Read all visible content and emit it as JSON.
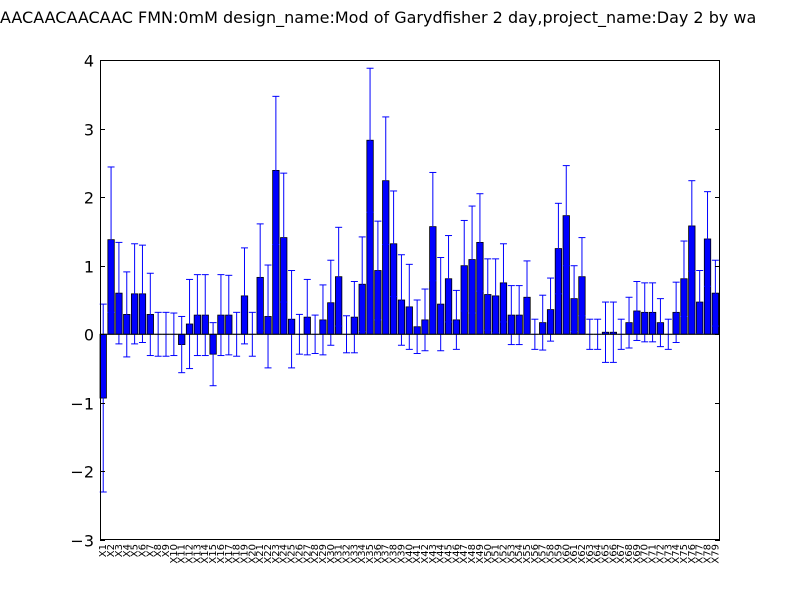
{
  "chart_data": {
    "type": "bar",
    "title": "AACAACAACAAC  FMN:0mM  design_name:Mod of Garydfisher 2 day,project_name:Day 2 by wa",
    "xlabel": "",
    "ylabel": "",
    "ylim": [
      -3,
      4
    ],
    "yticks": [
      "−3",
      "−2",
      "−1",
      "0",
      "1",
      "2",
      "3",
      "4"
    ],
    "ytick_values": [
      -3,
      -2,
      -1,
      0,
      1,
      2,
      3,
      4
    ],
    "grid": false,
    "bar_color": "#0000ff",
    "error_color": "#0000ff",
    "categories": [
      "X1",
      "X2",
      "X3",
      "X4",
      "X5",
      "X6",
      "X7",
      "X8",
      "X9",
      "X10",
      "X11",
      "X12",
      "X13",
      "X14",
      "X15",
      "X16",
      "X17",
      "X18",
      "X19",
      "X20",
      "X21",
      "X22",
      "X23",
      "X24",
      "X25",
      "X26",
      "X27",
      "X28",
      "X29",
      "X30",
      "X31",
      "X32",
      "X33",
      "X34",
      "X35",
      "X36",
      "X37",
      "X38",
      "X39",
      "X40",
      "X41",
      "X42",
      "X43",
      "X44",
      "X45",
      "X46",
      "X47",
      "X48",
      "X49",
      "X50",
      "X51",
      "X52",
      "X53",
      "X54",
      "X55",
      "X56",
      "X57",
      "X58",
      "X59",
      "X60",
      "X61",
      "X62",
      "X63",
      "X64",
      "X65",
      "X66",
      "X67",
      "X68",
      "X69",
      "X70",
      "X71",
      "X72",
      "X73",
      "X74",
      "X75",
      "X76",
      "X77",
      "X78",
      "X79"
    ],
    "values": [
      -0.93,
      1.38,
      0.6,
      0.29,
      0.59,
      0.59,
      0.29,
      0.0,
      0.0,
      0.0,
      -0.15,
      0.15,
      0.28,
      0.28,
      -0.29,
      0.28,
      0.28,
      0.0,
      0.56,
      0.0,
      0.83,
      0.26,
      2.39,
      1.41,
      0.22,
      0.0,
      0.25,
      0.0,
      0.21,
      0.46,
      0.84,
      0.0,
      0.25,
      0.73,
      2.83,
      0.93,
      2.24,
      1.32,
      0.5,
      0.4,
      0.11,
      0.21,
      1.57,
      0.44,
      0.81,
      0.21,
      1.0,
      1.09,
      1.34,
      0.58,
      0.56,
      0.75,
      0.28,
      0.28,
      0.54,
      0.0,
      0.17,
      0.36,
      1.25,
      1.73,
      0.52,
      0.84,
      0.0,
      0.0,
      0.03,
      0.03,
      0.0,
      0.17,
      0.34,
      0.32,
      0.32,
      0.17,
      0.0,
      0.32,
      0.81,
      1.58,
      0.47,
      1.39,
      0.6
    ],
    "errors": [
      1.37,
      1.06,
      0.74,
      0.62,
      0.73,
      0.71,
      0.6,
      0.32,
      0.32,
      0.31,
      0.41,
      0.65,
      0.59,
      0.59,
      0.46,
      0.59,
      0.58,
      0.32,
      0.7,
      0.32,
      0.78,
      0.75,
      1.08,
      0.94,
      0.71,
      0.29,
      0.55,
      0.28,
      0.51,
      0.62,
      0.72,
      0.27,
      0.52,
      0.69,
      1.05,
      0.72,
      0.93,
      0.77,
      0.66,
      0.62,
      0.39,
      0.45,
      0.79,
      0.68,
      0.63,
      0.43,
      0.66,
      0.78,
      0.71,
      0.52,
      0.54,
      0.57,
      0.43,
      0.43,
      0.53,
      0.22,
      0.4,
      0.46,
      0.66,
      0.73,
      0.48,
      0.57,
      0.22,
      0.22,
      0.44,
      0.44,
      0.22,
      0.37,
      0.43,
      0.43,
      0.43,
      0.35,
      0.22,
      0.44,
      0.55,
      0.66,
      0.46,
      0.69,
      0.48
    ]
  }
}
